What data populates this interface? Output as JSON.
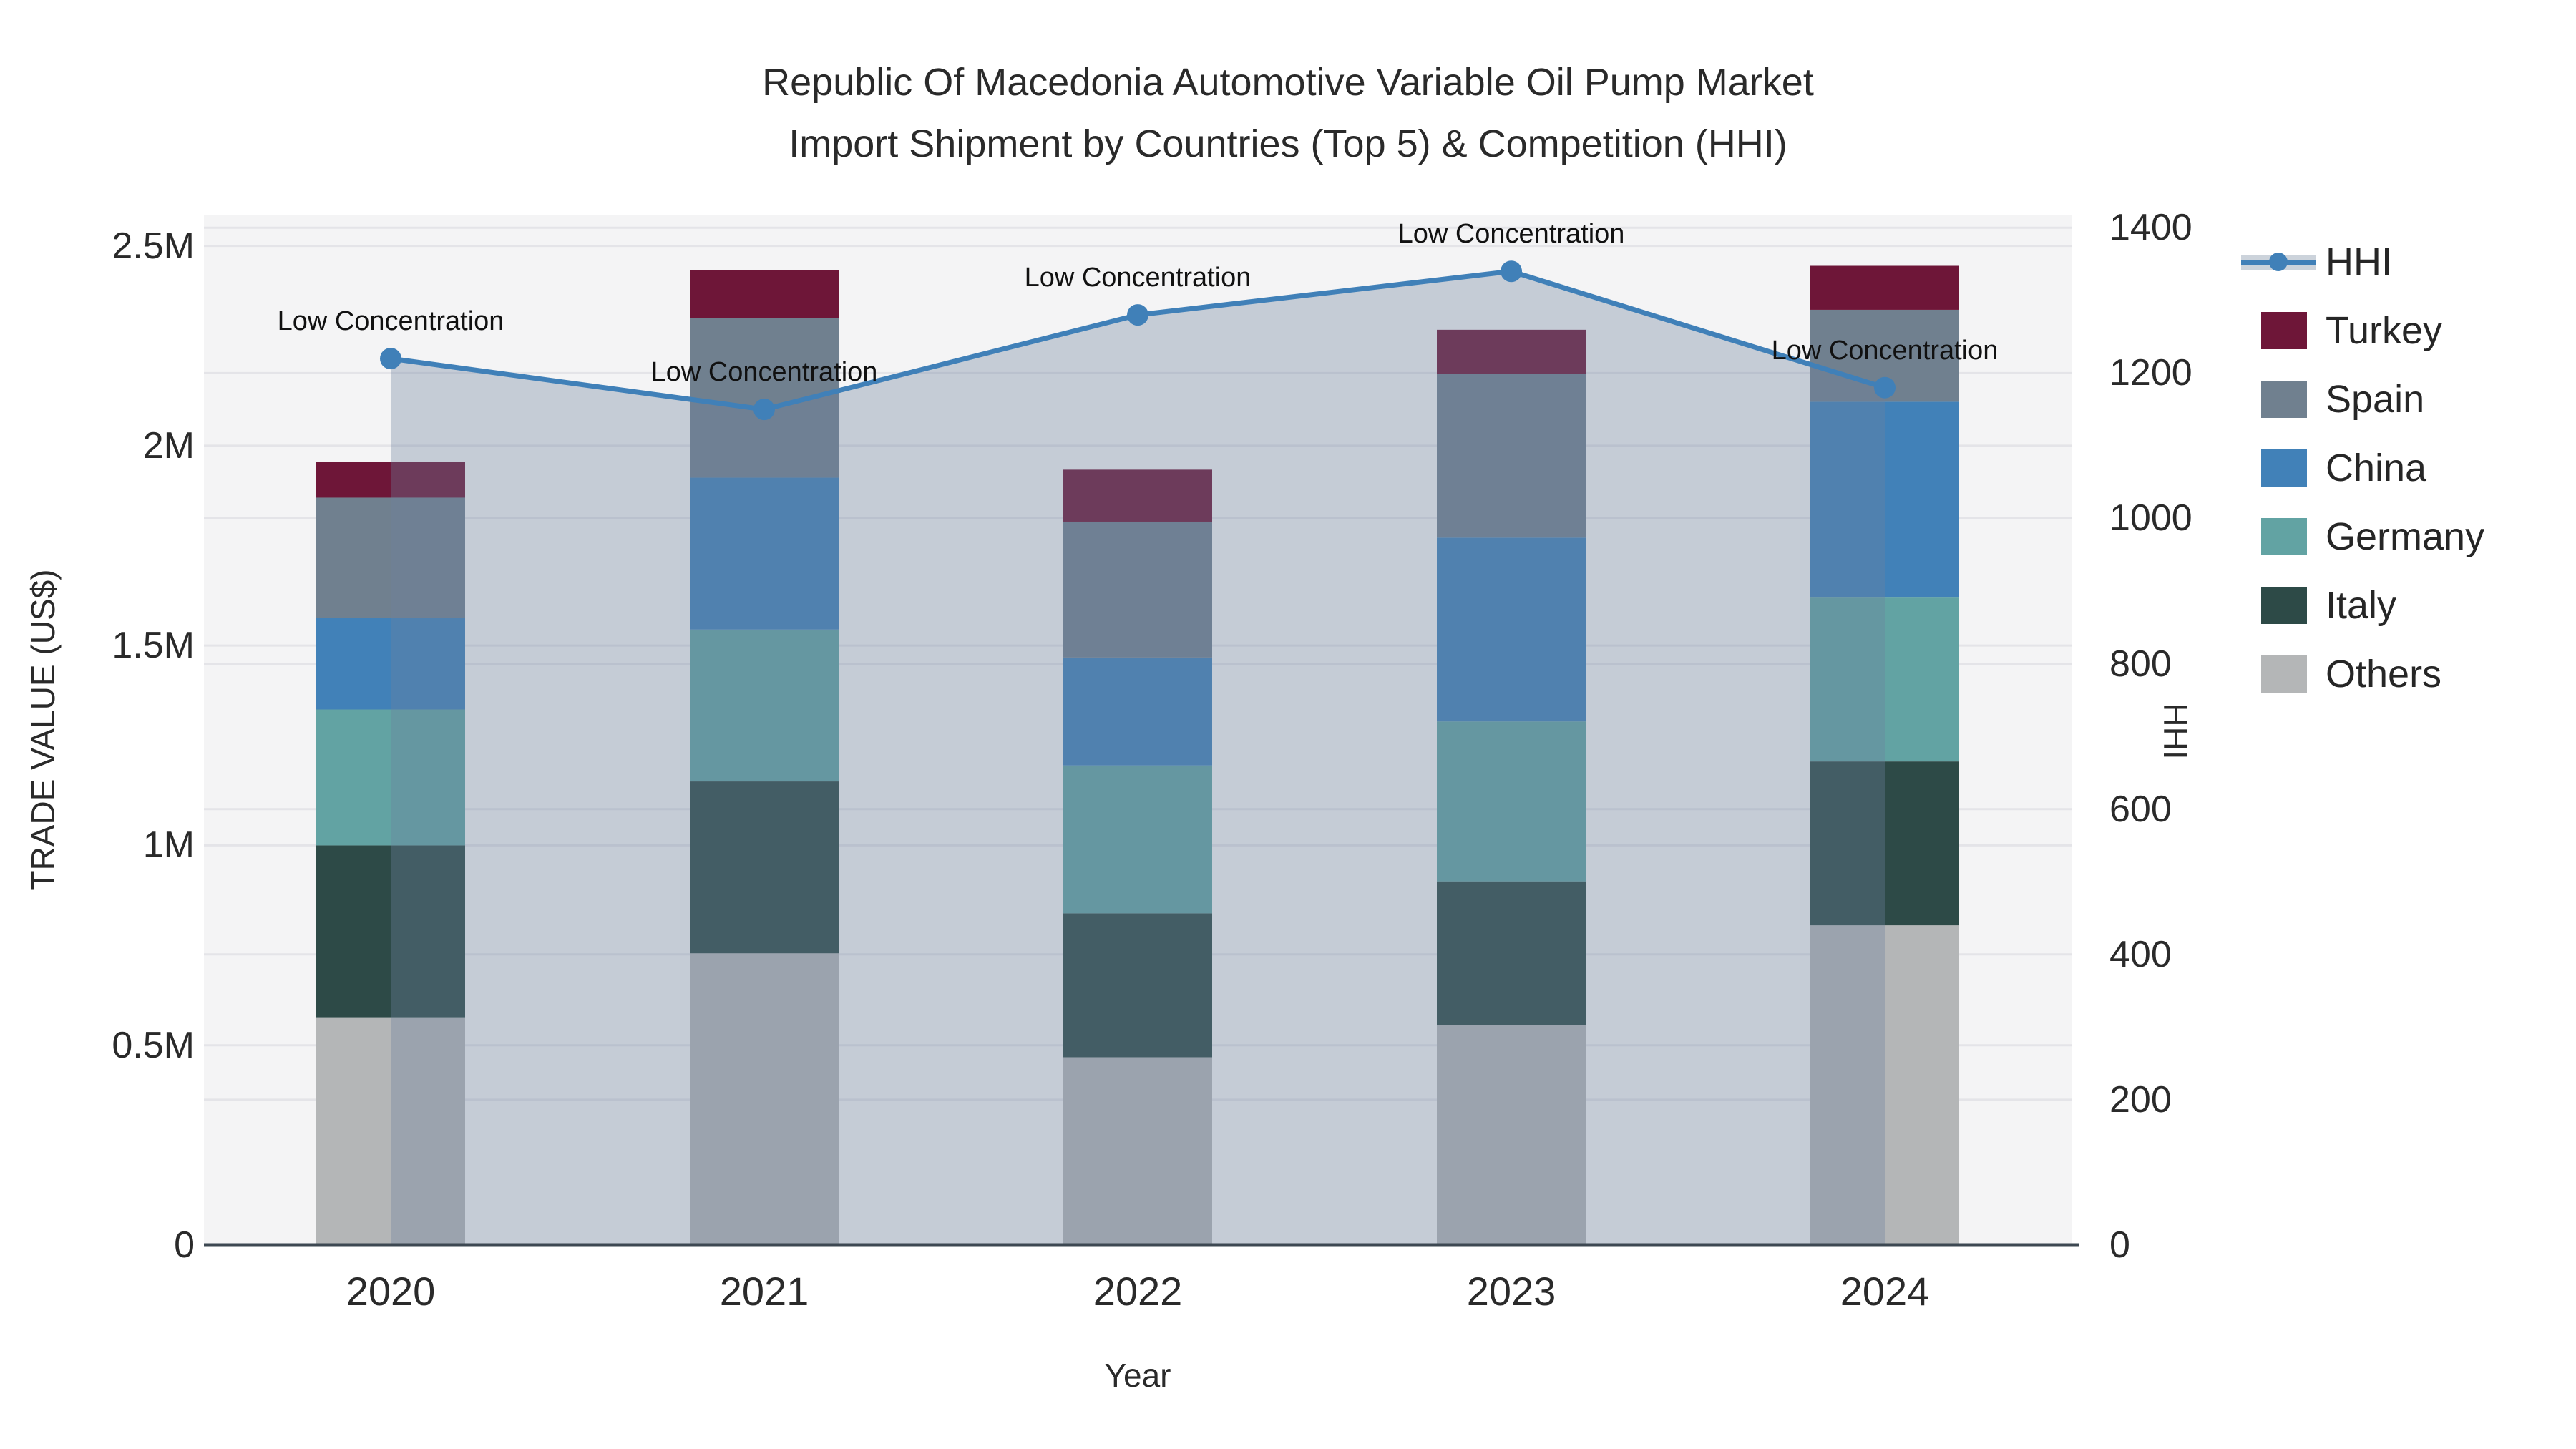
{
  "title": {
    "line1": "Republic Of Macedonia Automotive Variable Oil Pump Market",
    "line2": "Import Shipment by Countries (Top 5) & Competition (HHI)"
  },
  "axes": {
    "left_label": "TRADE VALUE (US$)",
    "right_label": "HHI",
    "x_label": "Year",
    "left_ticks": [
      {
        "value": 0,
        "label": "0"
      },
      {
        "value": 0.5,
        "label": "0.5M"
      },
      {
        "value": 1.0,
        "label": "1M"
      },
      {
        "value": 1.5,
        "label": "1.5M"
      },
      {
        "value": 2.0,
        "label": "2M"
      },
      {
        "value": 2.5,
        "label": "2.5M"
      }
    ],
    "right_ticks": [
      {
        "value": 0,
        "label": "0"
      },
      {
        "value": 200,
        "label": "200"
      },
      {
        "value": 400,
        "label": "400"
      },
      {
        "value": 600,
        "label": "600"
      },
      {
        "value": 800,
        "label": "800"
      },
      {
        "value": 1000,
        "label": "1000"
      },
      {
        "value": 1200,
        "label": "1200"
      },
      {
        "value": 1400,
        "label": "1400"
      }
    ]
  },
  "annotation_text": "Low Concentration",
  "legend": [
    {
      "label": "HHI",
      "type": "line",
      "color": "#4080b8"
    },
    {
      "label": "Turkey",
      "type": "swatch",
      "color": "#6e1638"
    },
    {
      "label": "Spain",
      "type": "swatch",
      "color": "#70808f"
    },
    {
      "label": "China",
      "type": "swatch",
      "color": "#4181b8"
    },
    {
      "label": "Germany",
      "type": "swatch",
      "color": "#62a3a3"
    },
    {
      "label": "Italy",
      "type": "swatch",
      "color": "#2d4a47"
    },
    {
      "label": "Others",
      "type": "swatch",
      "color": "#b4b6b7"
    }
  ],
  "colors": {
    "plot_bg": "#f4f4f5",
    "grid": "#e4e4e8",
    "axis_line": "#3d4852",
    "hhi_line": "#4080b8",
    "hhi_fill": "rgba(110,128,158,0.35)",
    "text": "#262626"
  },
  "chart_data": {
    "type": "combo_stacked_bar_line",
    "categories": [
      "2020",
      "2021",
      "2022",
      "2023",
      "2024"
    ],
    "bar_unit": "M US$",
    "series": [
      {
        "name": "Others",
        "color": "#b4b6b7",
        "values": [
          0.57,
          0.73,
          0.47,
          0.55,
          0.8
        ]
      },
      {
        "name": "Italy",
        "color": "#2d4a47",
        "values": [
          0.43,
          0.43,
          0.36,
          0.36,
          0.41
        ]
      },
      {
        "name": "Germany",
        "color": "#62a3a3",
        "values": [
          0.34,
          0.38,
          0.37,
          0.4,
          0.41
        ]
      },
      {
        "name": "China",
        "color": "#4181b8",
        "values": [
          0.23,
          0.38,
          0.27,
          0.46,
          0.49
        ]
      },
      {
        "name": "Spain",
        "color": "#70808f",
        "values": [
          0.3,
          0.4,
          0.34,
          0.41,
          0.23
        ]
      },
      {
        "name": "Turkey",
        "color": "#6e1638",
        "values": [
          0.09,
          0.12,
          0.13,
          0.11,
          0.11
        ]
      }
    ],
    "bar_totals": [
      1.96,
      2.44,
      1.94,
      2.29,
      2.45
    ],
    "line": {
      "name": "HHI",
      "values": [
        1220,
        1150,
        1280,
        1340,
        1180
      ]
    },
    "annotations": [
      "Low Concentration",
      "Low Concentration",
      "Low Concentration",
      "Low Concentration",
      "Low Concentration"
    ],
    "left_axis_range": [
      0,
      2.578
    ],
    "right_axis_range": [
      0,
      1418
    ],
    "grid": true,
    "legend_position": "right",
    "title": "Republic Of Macedonia Automotive Variable Oil Pump Market Import Shipment by Countries (Top 5) & Competition (HHI)",
    "xlabel": "Year",
    "ylabel_left": "TRADE VALUE (US$)",
    "ylabel_right": "HHI"
  }
}
